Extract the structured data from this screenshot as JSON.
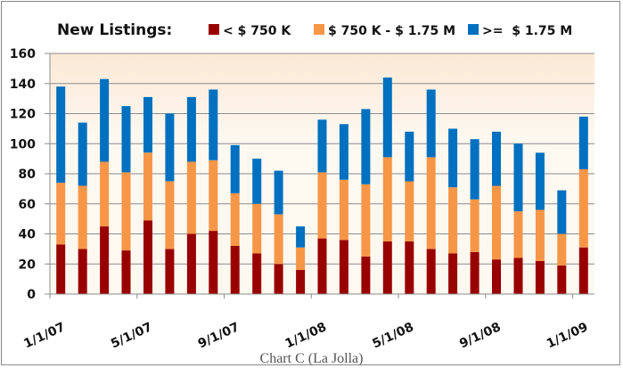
{
  "chart_data": {
    "type": "bar",
    "stacked": true,
    "title": "New Listings:",
    "caption": "Chart C (La Jolla)",
    "xlabel": "",
    "ylabel": "",
    "ylim": [
      0,
      160
    ],
    "yticks": [
      0,
      20,
      40,
      60,
      80,
      100,
      120,
      140,
      160
    ],
    "grid": true,
    "legend_position": "top",
    "x_tick_labels": [
      "1/1/07",
      "5/1/07",
      "9/1/07",
      "1/1/08",
      "5/1/08",
      "9/1/08",
      "1/1/09"
    ],
    "x_tick_every": 4,
    "categories": [
      "Jan-07",
      "Feb-07",
      "Mar-07",
      "Apr-07",
      "May-07",
      "Jun-07",
      "Jul-07",
      "Aug-07",
      "Sep-07",
      "Oct-07",
      "Nov-07",
      "Dec-07",
      "Jan-08",
      "Feb-08",
      "Mar-08",
      "Apr-08",
      "May-08",
      "Jun-08",
      "Jul-08",
      "Aug-08",
      "Sep-08",
      "Oct-08",
      "Nov-08",
      "Dec-08",
      "Jan-09"
    ],
    "series": [
      {
        "name": "< $ 750 K",
        "color": "#990000",
        "values": [
          33,
          30,
          45,
          29,
          49,
          30,
          40,
          42,
          32,
          27,
          20,
          16,
          37,
          36,
          25,
          35,
          35,
          30,
          27,
          28,
          23,
          24,
          22,
          19,
          31
        ]
      },
      {
        "name": "$ 750 K - $ 1.75 M",
        "color": "#f79646",
        "values": [
          41,
          42,
          43,
          52,
          45,
          45,
          48,
          47,
          35,
          33,
          33,
          15,
          44,
          40,
          48,
          56,
          40,
          61,
          44,
          35,
          49,
          31,
          34,
          21,
          52
        ]
      },
      {
        "name": ">=  $ 1.75 M",
        "color": "#0070c0",
        "values": [
          64,
          42,
          55,
          44,
          37,
          45,
          43,
          47,
          32,
          30,
          29,
          14,
          35,
          37,
          50,
          53,
          33,
          45,
          39,
          40,
          36,
          45,
          38,
          29,
          35
        ]
      }
    ]
  },
  "colors": {
    "plot_background_top": "#fbe9d6",
    "plot_background_bottom": "#fdf8f0",
    "gridline": "#8c8c8c",
    "frame": "#8a8a8a"
  }
}
